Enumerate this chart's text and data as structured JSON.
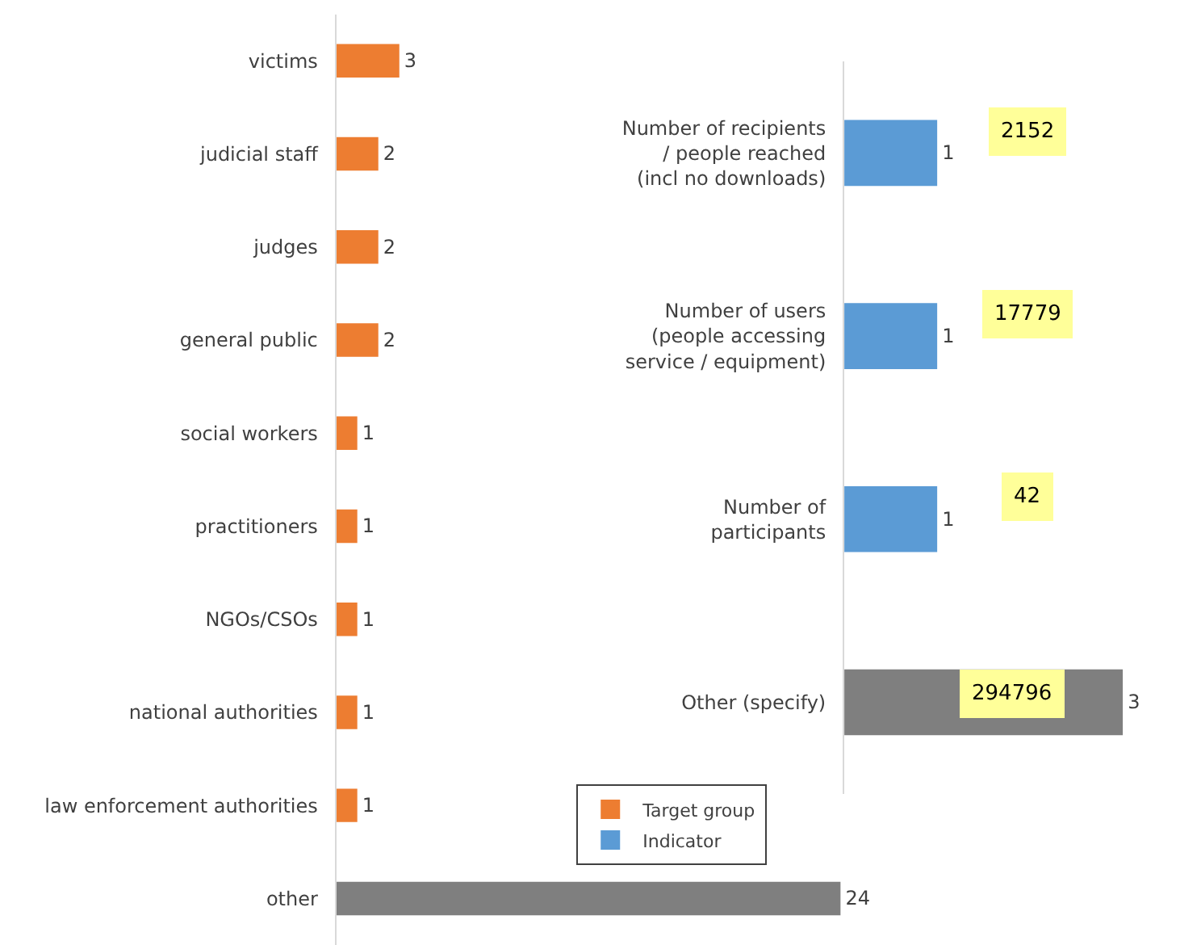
{
  "chart_data": [
    {
      "type": "bar",
      "orientation": "horizontal",
      "categories": [
        "victims",
        "judicial staff",
        "judges",
        "general public",
        "social workers",
        "practitioners",
        "NGOs/CSOs",
        "national authorities",
        "law enforcement authorities",
        "other"
      ],
      "xlim": [
        0,
        24
      ],
      "data_labels": true,
      "legend": "bottom right",
      "series": [
        {
          "name": "Target group",
          "values": [
            3,
            2,
            2,
            2,
            1,
            1,
            1,
            1,
            1,
            24
          ],
          "colors": [
            "#ed7d31",
            "#ed7d31",
            "#ed7d31",
            "#ed7d31",
            "#ed7d31",
            "#ed7d31",
            "#ed7d31",
            "#ed7d31",
            "#ed7d31",
            "#7f7f7f"
          ]
        }
      ]
    },
    {
      "type": "bar",
      "orientation": "horizontal",
      "categories": [
        "Number of recipients / people reached (incl no downloads)",
        "Number of users (people accessing service / equipment)",
        "Number of participants",
        "Other (specify)"
      ],
      "xlim": [
        0,
        3
      ],
      "data_labels": true,
      "series": [
        {
          "name": "Indicator",
          "values": [
            1,
            1,
            1,
            3
          ],
          "colors": [
            "#5b9bd5",
            "#5b9bd5",
            "#5b9bd5",
            "#7f7f7f"
          ]
        }
      ],
      "annotations": [
        "2152",
        "17779",
        "42",
        "294796"
      ]
    }
  ]
}
